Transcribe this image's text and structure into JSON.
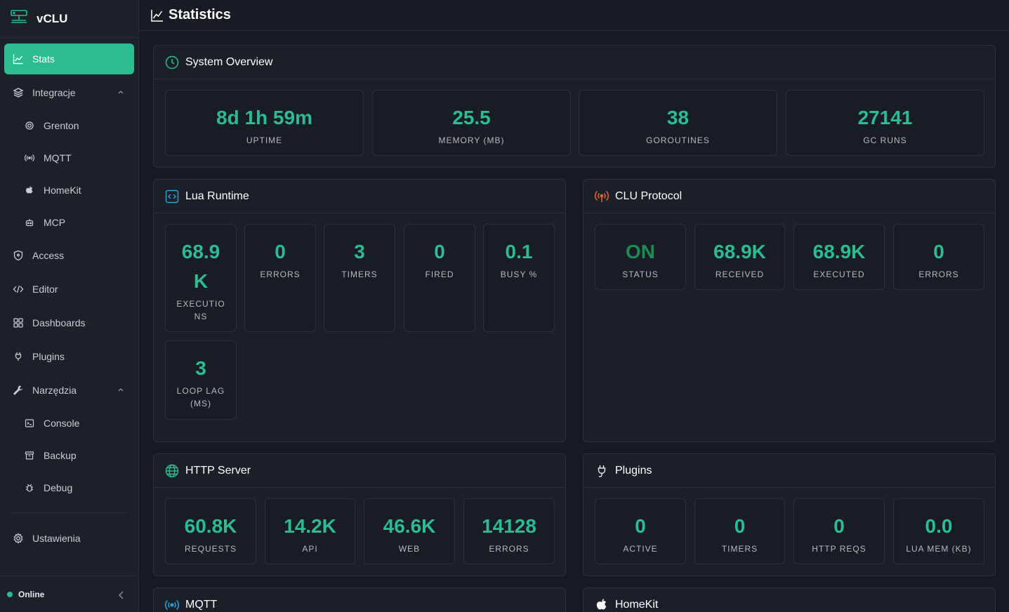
{
  "app": {
    "name": "vCLU"
  },
  "header": {
    "title": "Statistics"
  },
  "sidebar": {
    "items": [
      {
        "label": "Stats"
      },
      {
        "label": "Integracje"
      },
      {
        "label": "Grenton"
      },
      {
        "label": "MQTT"
      },
      {
        "label": "HomeKit"
      },
      {
        "label": "MCP"
      },
      {
        "label": "Access"
      },
      {
        "label": "Editor"
      },
      {
        "label": "Dashboards"
      },
      {
        "label": "Plugins"
      },
      {
        "label": "Narzędzia"
      },
      {
        "label": "Console"
      },
      {
        "label": "Backup"
      },
      {
        "label": "Debug"
      },
      {
        "label": "Ustawienia"
      }
    ],
    "status": "Online"
  },
  "colors": {
    "accent": "#2dbb92",
    "status_on": "#1e8a55",
    "clu_icon": "#e8643a",
    "lua_icon": "#2aa3d8"
  },
  "system_overview": {
    "title": "System Overview",
    "stats": [
      {
        "value": "8d 1h 59m",
        "label": "UPTIME"
      },
      {
        "value": "25.5",
        "label": "MEMORY (MB)"
      },
      {
        "value": "38",
        "label": "GOROUTINES"
      },
      {
        "value": "27141",
        "label": "GC RUNS"
      }
    ]
  },
  "lua_runtime": {
    "title": "Lua Runtime",
    "stats": [
      {
        "value": "68.9 K",
        "label": "EXECUTIO NS"
      },
      {
        "value": "0",
        "label": "ERRORS"
      },
      {
        "value": "3",
        "label": "TIMERS"
      },
      {
        "value": "0",
        "label": "FIRED"
      },
      {
        "value": "0.1",
        "label": "BUSY %"
      },
      {
        "value": "3",
        "label": "LOOP LAG (MS)"
      }
    ]
  },
  "clu_protocol": {
    "title": "CLU Protocol",
    "stats": [
      {
        "value": "ON",
        "label": "STATUS"
      },
      {
        "value": "68.9K",
        "label": "RECEIVED"
      },
      {
        "value": "68.9K",
        "label": "EXECUTED"
      },
      {
        "value": "0",
        "label": "ERRORS"
      }
    ]
  },
  "http_server": {
    "title": "HTTP Server",
    "stats": [
      {
        "value": "60.8K",
        "label": "REQUESTS"
      },
      {
        "value": "14.2K",
        "label": "API"
      },
      {
        "value": "46.6K",
        "label": "WEB"
      },
      {
        "value": "14128",
        "label": "ERRORS"
      }
    ]
  },
  "plugins": {
    "title": "Plugins",
    "stats": [
      {
        "value": "0",
        "label": "ACTIVE"
      },
      {
        "value": "0",
        "label": "TIMERS"
      },
      {
        "value": "0",
        "label": "HTTP REQS"
      },
      {
        "value": "0.0",
        "label": "LUA MEM (KB)"
      }
    ]
  },
  "mqtt": {
    "title": "MQTT"
  },
  "homekit": {
    "title": "HomeKit"
  }
}
